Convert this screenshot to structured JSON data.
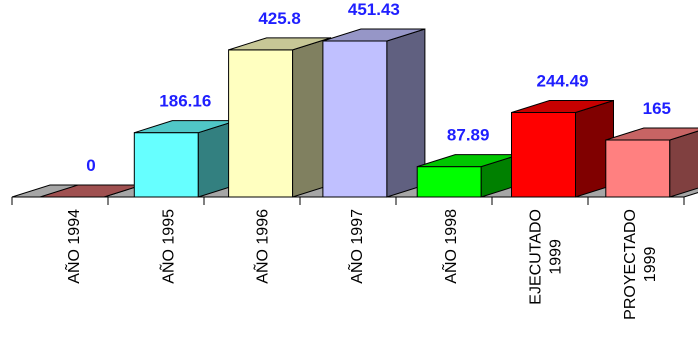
{
  "chart_data": {
    "type": "bar",
    "categories": [
      [
        "AÑO 1994"
      ],
      [
        "AÑO 1995"
      ],
      [
        "AÑO 1996"
      ],
      [
        "AÑO 1997"
      ],
      [
        "AÑO 1998"
      ],
      [
        "EJECUTADO",
        "1999"
      ],
      [
        "PROYECTADO",
        "1999"
      ]
    ],
    "values": [
      0,
      186.16,
      425.8,
      451.43,
      87.89,
      244.49,
      165
    ],
    "value_labels": [
      "0",
      "186.16",
      "425.8",
      "451.43",
      "87.89",
      "244.49",
      "165"
    ],
    "bar_colors": [
      "#cc6666",
      "#66ffff",
      "#ffffc0",
      "#c0c0ff",
      "#00ff00",
      "#ff0000",
      "#ff8080"
    ],
    "label_color": "#1f1fff",
    "ylim": [
      0,
      451.43
    ],
    "grid": false,
    "legend": "none",
    "style": "3d-columns"
  }
}
